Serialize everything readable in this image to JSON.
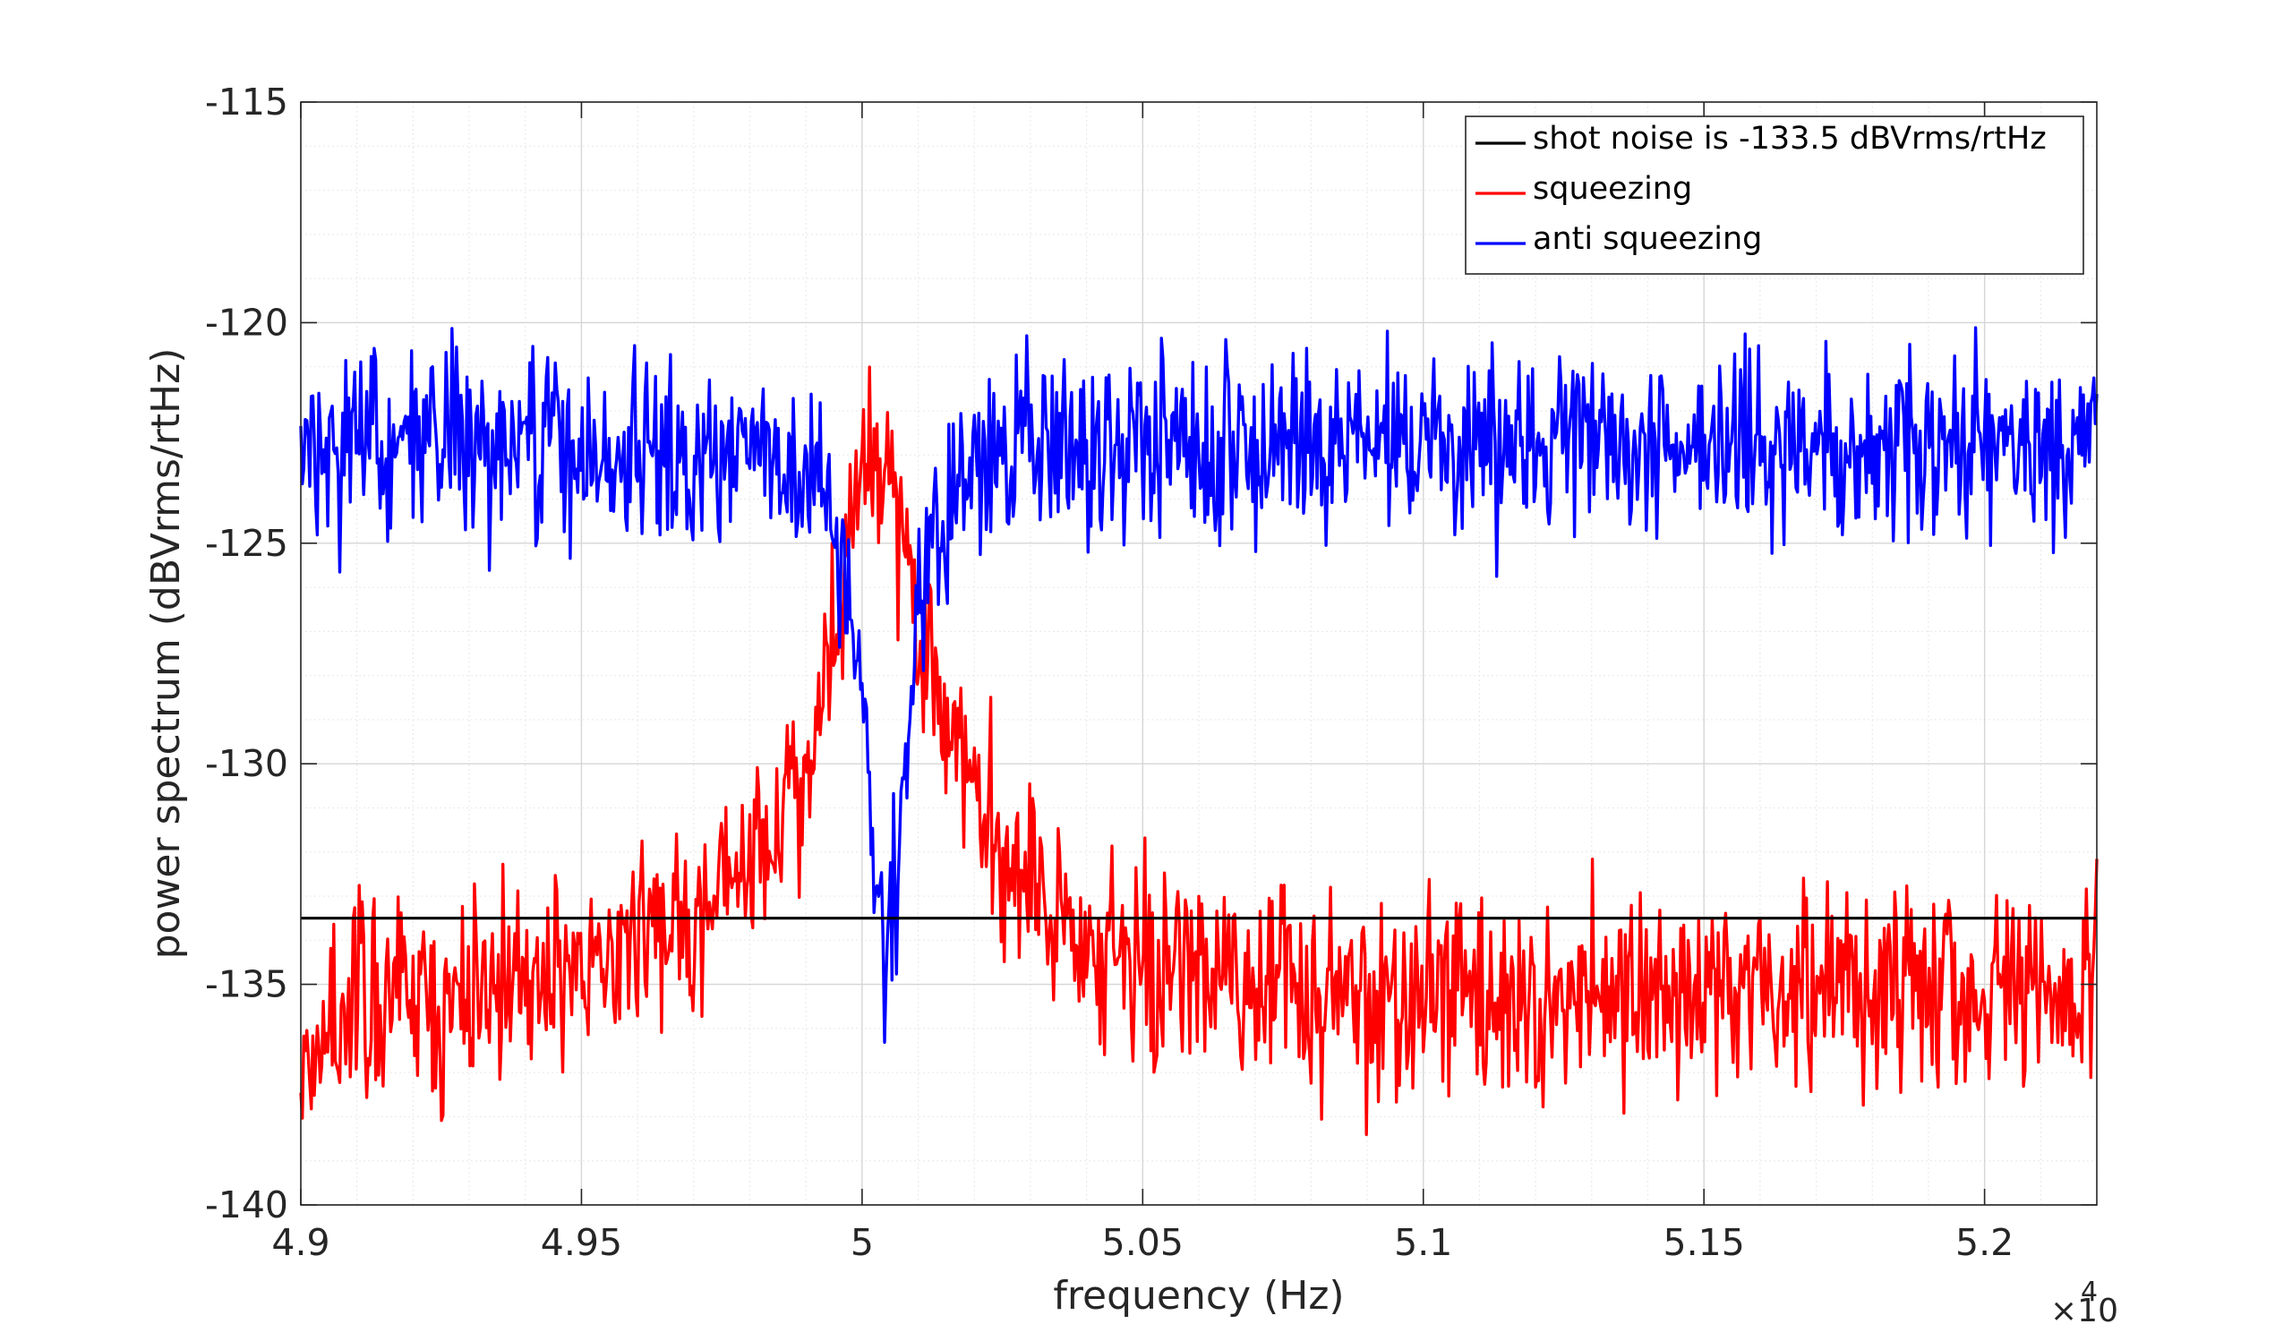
{
  "chart_data": {
    "type": "line",
    "xlabel": "frequency (Hz)",
    "ylabel": "power spectrum (dBVrms/rtHz)",
    "x_exponent_label": "×10",
    "x_exponent_power": "4",
    "xlim": [
      4.9,
      5.22
    ],
    "ylim": [
      -140,
      -115
    ],
    "x_ticks": [
      4.9,
      4.95,
      5.0,
      5.05,
      5.1,
      5.15,
      5.2
    ],
    "x_tick_labels": [
      "4.9",
      "4.95",
      "5",
      "5.05",
      "5.1",
      "5.15",
      "5.2"
    ],
    "y_ticks": [
      -140,
      -135,
      -130,
      -125,
      -120,
      -115
    ],
    "y_tick_labels": [
      "-140",
      "-135",
      "-130",
      "-125",
      "-120",
      "-115"
    ],
    "grid": true,
    "legend_position": "top-right",
    "series": [
      {
        "name": "shot noise is -133.5 dBVrms/rtHz",
        "color": "#000000",
        "points": [
          [
            4.9,
            -133.5
          ],
          [
            5.22,
            -133.5
          ]
        ]
      },
      {
        "name": "squeezing",
        "color": "#ff0000",
        "points": [
          [
            4.9,
            -136.5
          ],
          [
            4.91,
            -135.3
          ],
          [
            4.92,
            -135.4
          ],
          [
            4.93,
            -135.2
          ],
          [
            4.94,
            -135.0
          ],
          [
            4.95,
            -134.4
          ],
          [
            4.96,
            -134.0
          ],
          [
            4.97,
            -133.5
          ],
          [
            4.98,
            -132.3
          ],
          [
            4.985,
            -131.3
          ],
          [
            4.99,
            -129.5
          ],
          [
            4.993,
            -128.3
          ],
          [
            4.996,
            -126.5
          ],
          [
            4.998,
            -124.8
          ],
          [
            5.0,
            -123.6
          ],
          [
            5.002,
            -123.0
          ],
          [
            5.004,
            -123.4
          ],
          [
            5.006,
            -124.2
          ],
          [
            5.008,
            -125.5
          ],
          [
            5.01,
            -126.8
          ],
          [
            5.013,
            -128.3
          ],
          [
            5.016,
            -129.6
          ],
          [
            5.02,
            -130.8
          ],
          [
            5.025,
            -131.8
          ],
          [
            5.03,
            -132.6
          ],
          [
            5.035,
            -133.2
          ],
          [
            5.04,
            -133.8
          ],
          [
            5.05,
            -134.6
          ],
          [
            5.07,
            -135.0
          ],
          [
            5.1,
            -135.3
          ],
          [
            5.13,
            -135.2
          ],
          [
            5.16,
            -135.1
          ],
          [
            5.19,
            -135.1
          ],
          [
            5.22,
            -135.3
          ]
        ],
        "noise_db": 1.15
      },
      {
        "name": "anti squeezing",
        "color": "#0000ff",
        "points": [
          [
            4.9,
            -122.7
          ],
          [
            4.95,
            -122.8
          ],
          [
            4.97,
            -122.9
          ],
          [
            4.98,
            -123.0
          ],
          [
            4.99,
            -123.5
          ],
          [
            4.994,
            -124.3
          ],
          [
            4.997,
            -125.8
          ],
          [
            4.999,
            -127.5
          ],
          [
            5.001,
            -129.6
          ],
          [
            5.002,
            -131.5
          ],
          [
            5.003,
            -133.7
          ],
          [
            5.0045,
            -134.6
          ],
          [
            5.006,
            -132.8
          ],
          [
            5.008,
            -129.6
          ],
          [
            5.01,
            -126.6
          ],
          [
            5.012,
            -124.9
          ],
          [
            5.015,
            -123.9
          ],
          [
            5.02,
            -123.2
          ],
          [
            5.03,
            -122.8
          ],
          [
            5.1,
            -122.7
          ],
          [
            5.22,
            -122.7
          ]
        ],
        "noise_db": 1.05
      }
    ]
  }
}
